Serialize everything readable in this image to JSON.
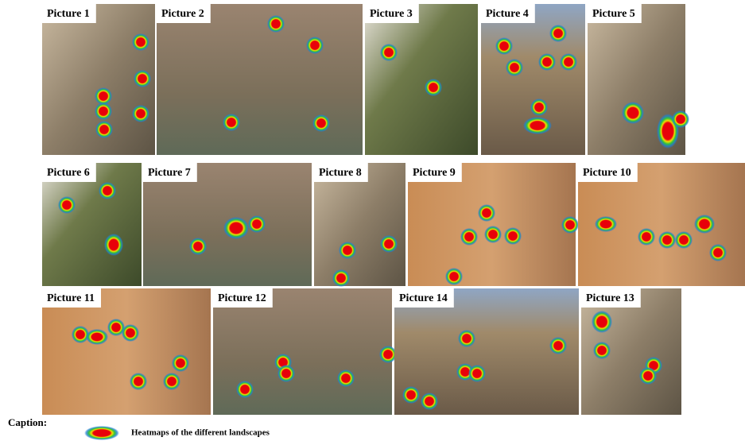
{
  "panels": [
    {
      "label": "Picture 1"
    },
    {
      "label": "Picture 2"
    },
    {
      "label": "Picture 3"
    },
    {
      "label": "Picture 4"
    },
    {
      "label": "Picture 5"
    },
    {
      "label": "Picture 6"
    },
    {
      "label": "Picture 7"
    },
    {
      "label": "Picture 8"
    },
    {
      "label": "Picture 9"
    },
    {
      "label": "Picture 10"
    },
    {
      "label": "Picture 11"
    },
    {
      "label": "Picture 12"
    },
    {
      "label": "Picture 14"
    },
    {
      "label": "Picture 13"
    }
  ],
  "caption": {
    "heading": "Caption:",
    "text": "Heatmaps of the different landscapes"
  }
}
